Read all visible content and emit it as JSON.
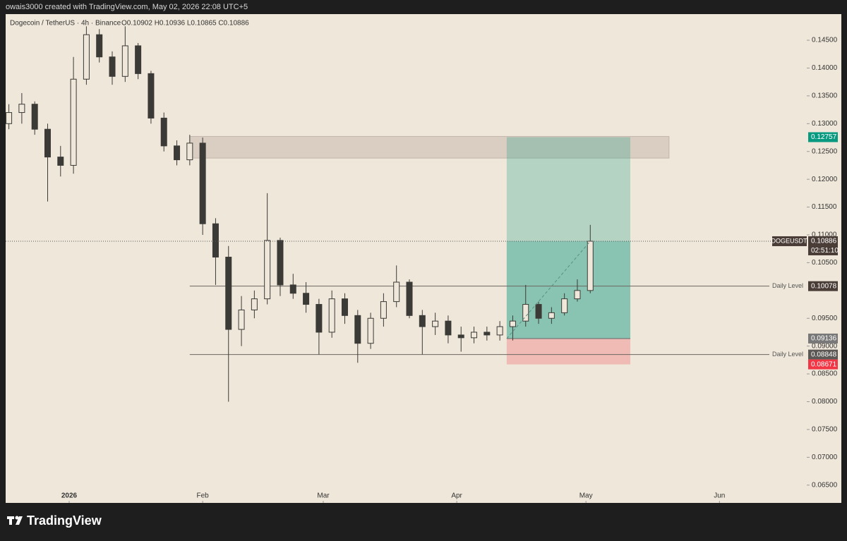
{
  "header": {
    "attribution": "owais3000 created with TradingView.com, May 02, 2026 22:08 UTC+5"
  },
  "chart_data": {
    "type": "candlestick",
    "title": "Dogecoin / TetherUS · 4h · Binance",
    "ohlc_text": "O0.10902 H0.10936 L0.10865 C0.10886",
    "color": "#3b3a37",
    "x": [
      -14,
      -11,
      -8,
      -5,
      -2,
      1,
      4,
      7,
      10,
      13,
      16,
      19,
      22,
      25,
      28,
      31,
      34,
      37,
      40,
      43,
      46,
      49,
      52,
      55,
      58,
      61,
      64,
      67,
      70,
      73,
      76,
      79,
      82,
      85,
      88,
      91,
      94,
      97,
      100,
      103,
      106,
      109,
      112,
      115,
      118,
      121
    ],
    "open": [
      0.13,
      0.132,
      0.1335,
      0.129,
      0.124,
      0.1225,
      0.138,
      0.146,
      0.142,
      0.1385,
      0.144,
      0.139,
      0.131,
      0.126,
      0.1235,
      0.1265,
      0.112,
      0.106,
      0.093,
      0.0965,
      0.0985,
      0.109,
      0.101,
      0.0995,
      0.0975,
      0.0925,
      0.0985,
      0.0955,
      0.0905,
      0.095,
      0.098,
      0.1015,
      0.0955,
      0.0935,
      0.0945,
      0.092,
      0.0915,
      0.0925,
      0.092,
      0.0935,
      0.0945,
      0.0975,
      0.095,
      0.096,
      0.0985,
      0.1
    ],
    "high": [
      0.1335,
      0.1355,
      0.134,
      0.13,
      0.126,
      0.142,
      0.1475,
      0.147,
      0.143,
      0.1475,
      0.1445,
      0.1395,
      0.132,
      0.127,
      0.128,
      0.1275,
      0.113,
      0.108,
      0.099,
      0.1,
      0.1175,
      0.1095,
      0.103,
      0.1015,
      0.0985,
      0.1,
      0.0995,
      0.0965,
      0.096,
      0.0995,
      0.1045,
      0.102,
      0.0965,
      0.096,
      0.0955,
      0.0935,
      0.0935,
      0.0935,
      0.0945,
      0.0955,
      0.101,
      0.098,
      0.097,
      0.0995,
      0.102,
      0.1118
    ],
    "low": [
      0.129,
      0.13,
      0.128,
      0.116,
      0.1205,
      0.121,
      0.137,
      0.141,
      0.137,
      0.1375,
      0.138,
      0.13,
      0.125,
      0.1225,
      0.1225,
      0.11,
      0.101,
      0.08,
      0.09,
      0.095,
      0.0975,
      0.099,
      0.0985,
      0.096,
      0.0885,
      0.0915,
      0.094,
      0.087,
      0.0895,
      0.0935,
      0.097,
      0.095,
      0.0885,
      0.092,
      0.0905,
      0.089,
      0.0905,
      0.091,
      0.091,
      0.091,
      0.0935,
      0.094,
      0.094,
      0.0955,
      0.098,
      0.0995
    ],
    "close": [
      0.132,
      0.1335,
      0.129,
      0.124,
      0.1225,
      0.138,
      0.146,
      0.142,
      0.1385,
      0.144,
      0.139,
      0.131,
      0.126,
      0.1235,
      0.1265,
      0.112,
      0.106,
      0.093,
      0.0965,
      0.0985,
      0.109,
      0.101,
      0.0995,
      0.0975,
      0.0925,
      0.0985,
      0.0955,
      0.0905,
      0.095,
      0.098,
      0.1015,
      0.0955,
      0.0935,
      0.0945,
      0.092,
      0.0915,
      0.0925,
      0.092,
      0.0935,
      0.0945,
      0.0975,
      0.095,
      0.096,
      0.0985,
      0.1,
      0.10886
    ],
    "xlim": [
      -14.75,
      171.6
    ],
    "xticks": [
      {
        "value": 0,
        "label": "2026"
      },
      {
        "value": 31,
        "label": "Feb"
      },
      {
        "value": 59,
        "label": "Mar"
      },
      {
        "value": 90,
        "label": "Apr"
      },
      {
        "value": 120,
        "label": "May"
      },
      {
        "value": 151,
        "label": "Jun"
      }
    ],
    "ylim": [
      0.0618,
      0.1497
    ],
    "yticks": [
      {
        "value": 0.145,
        "label": "0.14500"
      },
      {
        "value": 0.14,
        "label": "0.14000"
      },
      {
        "value": 0.135,
        "label": "0.13500"
      },
      {
        "value": 0.13,
        "label": "0.13000"
      },
      {
        "value": 0.125,
        "label": "0.12500"
      },
      {
        "value": 0.12,
        "label": "0.12000"
      },
      {
        "value": 0.115,
        "label": "0.11500"
      },
      {
        "value": 0.11,
        "label": "0.11000"
      },
      {
        "value": 0.105,
        "label": "0.10500"
      },
      {
        "value": 0.095,
        "label": "0.09500"
      },
      {
        "value": 0.09,
        "label": "0.09000"
      },
      {
        "value": 0.085,
        "label": "0.08500"
      },
      {
        "value": 0.08,
        "label": "0.08000"
      },
      {
        "value": 0.075,
        "label": "0.07500"
      },
      {
        "value": 0.07,
        "label": "0.07000"
      },
      {
        "value": 0.065,
        "label": "0.06500"
      }
    ],
    "zone": {
      "top": 0.1277,
      "bottom": 0.1238,
      "from": 28,
      "to": 139.3
    },
    "levels": [
      {
        "label": "Daily Level",
        "value": 0.10078,
        "from": 28
      },
      {
        "label": "Daily Level",
        "value": 0.08848,
        "from": 28
      }
    ],
    "position": {
      "target": 0.12757,
      "entry": 0.09136,
      "stop": 0.08671,
      "from": 101.6,
      "to": 130.3
    },
    "last_price": {
      "symbol": "DOGEUSDT",
      "value": 0.10886,
      "countdown": "02:51:10"
    }
  },
  "footer": {
    "brand": "TradingView"
  }
}
